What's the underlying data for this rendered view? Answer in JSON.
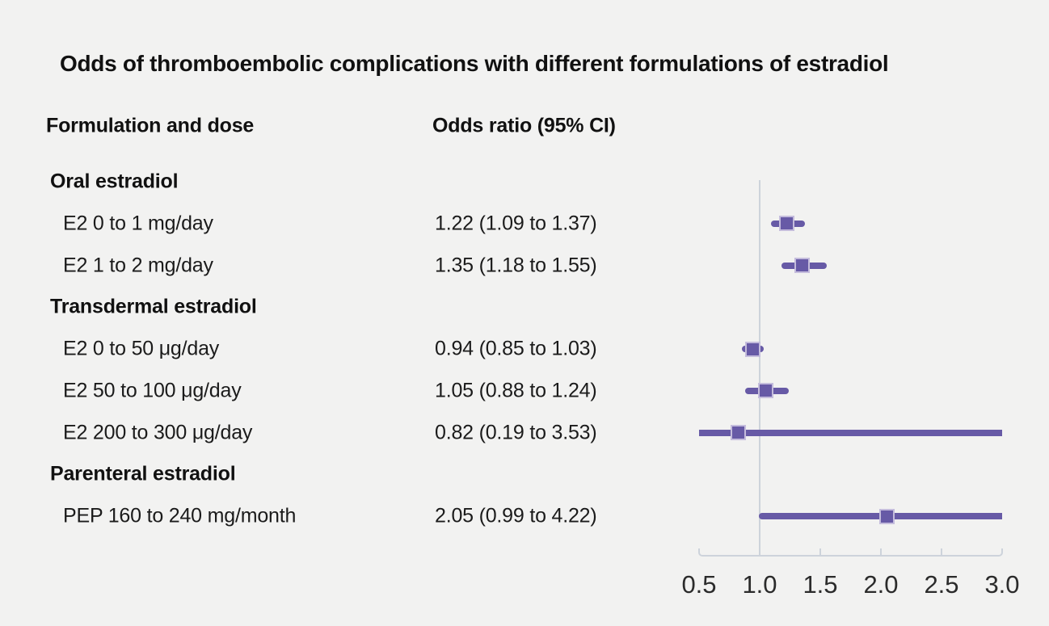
{
  "title": "Odds of thromboembolic complications with different formulations of estradiol",
  "header": {
    "formulation": "Formulation and dose",
    "odds_ratio": "Odds ratio (95% CI)"
  },
  "chart_data": {
    "type": "forest",
    "title": "Odds of thromboembolic complications with different formulations of estradiol",
    "xlabel": "",
    "ylabel": "",
    "legend": "none",
    "grid": "off",
    "axis": {
      "min": 0.5,
      "max": 3.0,
      "tick_values": [
        0.5,
        1.0,
        1.5,
        2.0,
        2.5,
        3.0
      ],
      "tick_labels": [
        "0.5",
        "1.0",
        "1.5",
        "2.0",
        "2.5",
        "3.0"
      ],
      "reference_line": 1.0
    },
    "rows": [
      {
        "type": "section",
        "label": "Oral estradiol"
      },
      {
        "type": "item",
        "label": "E2 0 to 1 mg/day",
        "value_text": "1.22 (1.09 to 1.37)",
        "estimate": 1.22,
        "ci_low": 1.09,
        "ci_high": 1.37
      },
      {
        "type": "item",
        "label": "E2 1 to 2 mg/day",
        "value_text": "1.35 (1.18 to 1.55)",
        "estimate": 1.35,
        "ci_low": 1.18,
        "ci_high": 1.55
      },
      {
        "type": "section",
        "label": "Transdermal estradiol"
      },
      {
        "type": "item",
        "label": "E2 0 to 50 μg/day",
        "value_text": "0.94 (0.85 to 1.03)",
        "estimate": 0.94,
        "ci_low": 0.85,
        "ci_high": 1.03
      },
      {
        "type": "item",
        "label": "E2 50 to 100 μg/day",
        "value_text": "1.05 (0.88 to 1.24)",
        "estimate": 1.05,
        "ci_low": 0.88,
        "ci_high": 1.24
      },
      {
        "type": "item",
        "label": "E2 200 to 300 μg/day",
        "value_text": "0.82 (0.19 to 3.53)",
        "estimate": 0.82,
        "ci_low": 0.19,
        "ci_high": 3.53
      },
      {
        "type": "section",
        "label": "Parenteral estradiol"
      },
      {
        "type": "item",
        "label": "PEP 160 to 240 mg/month",
        "value_text": "2.05 (0.99 to 4.22)",
        "estimate": 2.05,
        "ci_low": 0.99,
        "ci_high": 4.22
      }
    ],
    "colors": {
      "marker_fill": "#675aa6",
      "marker_border": "#c4bcdc",
      "ci_line": "#675aa6",
      "axis_line": "#cdd3db",
      "reference_line": "#cdd3db",
      "background": "#f2f2f1",
      "text": "#1b1b1b",
      "tick_text": "#2b2b2b"
    }
  }
}
